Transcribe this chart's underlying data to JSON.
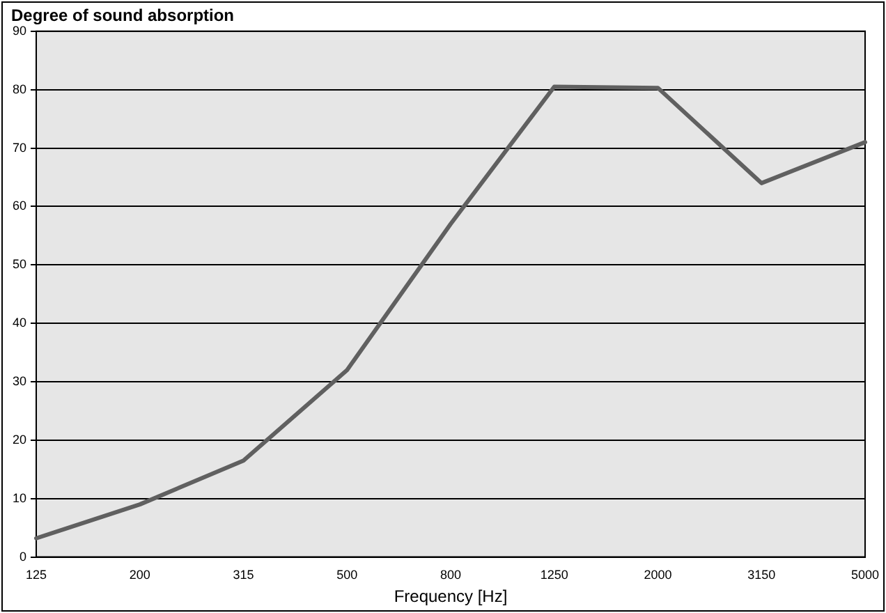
{
  "chart_data": {
    "type": "line",
    "title": "Degree of sound absorption",
    "xlabel": "Frequency [Hz]",
    "categories": [
      "125",
      "200",
      "315",
      "500",
      "800",
      "1250",
      "2000",
      "3150",
      "5000"
    ],
    "series": [
      {
        "color": "#606060",
        "values": [
          3.2,
          9,
          16.5,
          32,
          57,
          80.5,
          80.3,
          64,
          71
        ]
      }
    ],
    "ylim": [
      0,
      90
    ],
    "yticks": [
      0,
      10,
      20,
      30,
      40,
      50,
      60,
      70,
      80,
      90
    ],
    "grid": "y",
    "legend": false,
    "marker": "none",
    "line_style": "solid"
  }
}
